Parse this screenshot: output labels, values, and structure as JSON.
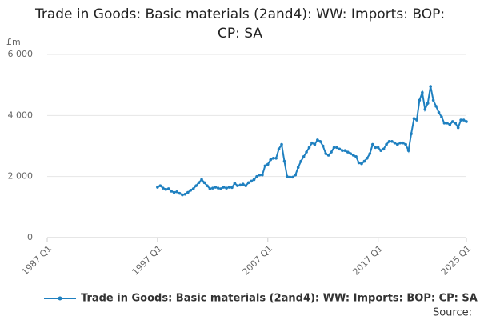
{
  "chart_data": {
    "type": "line",
    "title": "Trade in Goods: Basic materials (2and4): WW: Imports: BOP: CP: SA",
    "y_label": "£m",
    "source": "Source:",
    "x": [
      1997,
      1997.25,
      1997.5,
      1997.75,
      1998,
      1998.25,
      1998.5,
      1998.75,
      1999,
      1999.25,
      1999.5,
      1999.75,
      2000,
      2000.25,
      2000.5,
      2000.75,
      2001,
      2001.25,
      2001.5,
      2001.75,
      2002,
      2002.25,
      2002.5,
      2002.75,
      2003,
      2003.25,
      2003.5,
      2003.75,
      2004,
      2004.25,
      2004.5,
      2004.75,
      2005,
      2005.25,
      2005.5,
      2005.75,
      2006,
      2006.25,
      2006.5,
      2006.75,
      2007,
      2007.25,
      2007.5,
      2007.75,
      2008,
      2008.25,
      2008.5,
      2008.75,
      2009,
      2009.25,
      2009.5,
      2009.75,
      2010,
      2010.25,
      2010.5,
      2010.75,
      2011,
      2011.25,
      2011.5,
      2011.75,
      2012,
      2012.25,
      2012.5,
      2012.75,
      2013,
      2013.25,
      2013.5,
      2013.75,
      2014,
      2014.25,
      2014.5,
      2014.75,
      2015,
      2015.25,
      2015.5,
      2015.75,
      2016,
      2016.25,
      2016.5,
      2016.75,
      2017,
      2017.25,
      2017.5,
      2017.75,
      2018,
      2018.25,
      2018.5,
      2018.75,
      2019,
      2019.25,
      2019.5,
      2019.75,
      2020,
      2020.25,
      2020.5,
      2020.75,
      2021,
      2021.25,
      2021.5,
      2021.75,
      2022,
      2022.25,
      2022.5,
      2022.75,
      2023,
      2023.25,
      2023.5,
      2023.75,
      2024,
      2024.25,
      2024.5,
      2024.75,
      2025
    ],
    "series": [
      {
        "name": "Trade in Goods: Basic materials (2and4): WW: Imports: BOP: CP: SA",
        "color": "#1f80c0",
        "values": [
          1650,
          1700,
          1620,
          1580,
          1600,
          1520,
          1480,
          1500,
          1450,
          1400,
          1420,
          1480,
          1550,
          1600,
          1700,
          1800,
          1900,
          1800,
          1700,
          1600,
          1620,
          1650,
          1620,
          1600,
          1650,
          1620,
          1650,
          1640,
          1780,
          1700,
          1720,
          1750,
          1700,
          1800,
          1850,
          1900,
          2000,
          2050,
          2050,
          2350,
          2400,
          2550,
          2600,
          2600,
          2900,
          3050,
          2500,
          2000,
          1980,
          1980,
          2050,
          2300,
          2500,
          2650,
          2800,
          2950,
          3100,
          3050,
          3200,
          3150,
          3000,
          2750,
          2700,
          2800,
          2950,
          2950,
          2900,
          2850,
          2850,
          2800,
          2750,
          2700,
          2650,
          2450,
          2420,
          2500,
          2600,
          2750,
          3050,
          2950,
          2950,
          2850,
          2900,
          3050,
          3150,
          3150,
          3100,
          3050,
          3100,
          3100,
          3050,
          2850,
          3400,
          3900,
          3850,
          4500,
          4750,
          4200,
          4400,
          4950,
          4500,
          4300,
          4100,
          3950,
          3750,
          3750,
          3700,
          3800,
          3750,
          3600,
          3850,
          3850,
          3800
        ]
      }
    ],
    "xlim": [
      1987,
      2025
    ],
    "xticks": [
      {
        "value": 1987,
        "label": "1987 Q1"
      },
      {
        "value": 1997,
        "label": "1997 Q1"
      },
      {
        "value": 2007,
        "label": "2007 Q1"
      },
      {
        "value": 2017,
        "label": "2017 Q1"
      },
      {
        "value": 2025,
        "label": "2025 Q1"
      }
    ],
    "ylim": [
      0,
      6000
    ],
    "yticks": [
      0,
      {
        "value": 2000,
        "label": "2 000"
      },
      {
        "value": 4000,
        "label": "4 000"
      },
      {
        "value": 6000,
        "label": "6 000"
      }
    ],
    "grid": true
  }
}
